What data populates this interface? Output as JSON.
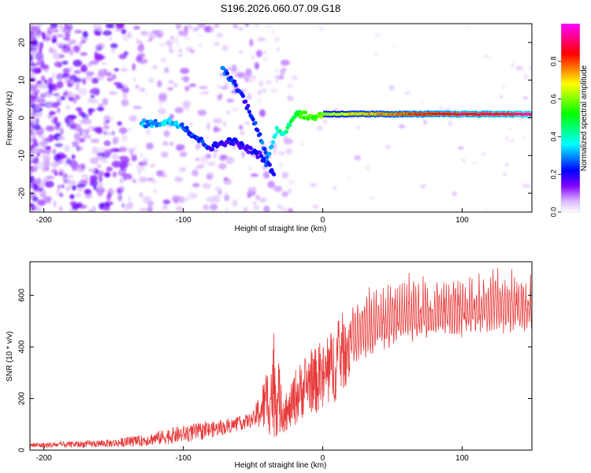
{
  "title": "S196.2026.060.07.09.G18",
  "chart_data": [
    {
      "type": "heatmap",
      "title": "S196.2026.060.07.09.G18",
      "xlabel": "Height of straight line (km)",
      "ylabel": "Frequency (Hz)",
      "xlim": [
        -210,
        150
      ],
      "ylim": [
        -25,
        25
      ],
      "xticks": [
        -200,
        -100,
        0,
        100
      ],
      "yticks": [
        -20,
        -10,
        0,
        10,
        20
      ],
      "colorbar": {
        "label": "Normalized spectral amplitude",
        "ticks": [
          0.0,
          0.2,
          0.4,
          0.6,
          0.8
        ],
        "range": [
          0,
          1
        ],
        "colors": [
          "#ffffff",
          "#8000ff",
          "#0000ff",
          "#00ffff",
          "#00ff00",
          "#ffff00",
          "#ff0000",
          "#ff00ff"
        ]
      },
      "ridge": {
        "description": "bright ridge of spectral energy",
        "points": [
          {
            "x": -130,
            "y": -1.5,
            "a": 0.3
          },
          {
            "x": -120,
            "y": -1.5,
            "a": 0.3
          },
          {
            "x": -110,
            "y": -1,
            "a": 0.35
          },
          {
            "x": -100,
            "y": -2,
            "a": 0.3
          },
          {
            "x": -95,
            "y": -4,
            "a": 0.25
          },
          {
            "x": -88,
            "y": -6,
            "a": 0.25
          },
          {
            "x": -80,
            "y": -8,
            "a": 0.2
          },
          {
            "x": -75,
            "y": -7,
            "a": 0.2
          },
          {
            "x": -65,
            "y": -6,
            "a": 0.2
          },
          {
            "x": -55,
            "y": -8,
            "a": 0.2
          },
          {
            "x": -45,
            "y": -10,
            "a": 0.2
          },
          {
            "x": -38,
            "y": -13,
            "a": 0.25
          },
          {
            "x": -35,
            "y": -15,
            "a": 0.2
          },
          {
            "x": -72,
            "y": 13,
            "a": 0.25
          },
          {
            "x": -65,
            "y": 10,
            "a": 0.25
          },
          {
            "x": -58,
            "y": 6,
            "a": 0.2
          },
          {
            "x": -50,
            "y": 0,
            "a": 0.25
          },
          {
            "x": -45,
            "y": -5,
            "a": 0.25
          },
          {
            "x": -40,
            "y": -11,
            "a": 0.3
          },
          {
            "x": -33,
            "y": -3,
            "a": 0.4
          },
          {
            "x": -27,
            "y": -4,
            "a": 0.4
          },
          {
            "x": -20,
            "y": 1,
            "a": 0.5
          },
          {
            "x": -15,
            "y": 1,
            "a": 0.55
          },
          {
            "x": -8,
            "y": 0,
            "a": 0.55
          },
          {
            "x": 0,
            "y": 1,
            "a": 0.6
          },
          {
            "x": 10,
            "y": 1,
            "a": 0.65
          },
          {
            "x": 20,
            "y": 1,
            "a": 0.7
          },
          {
            "x": 40,
            "y": 1,
            "a": 0.75
          },
          {
            "x": 60,
            "y": 1,
            "a": 0.8
          },
          {
            "x": 80,
            "y": 1,
            "a": 0.85
          },
          {
            "x": 100,
            "y": 1,
            "a": 0.9
          },
          {
            "x": 120,
            "y": 1,
            "a": 0.9
          },
          {
            "x": 150,
            "y": 1,
            "a": 0.95
          }
        ]
      }
    },
    {
      "type": "line",
      "xlabel": "Height of straight line (km)",
      "ylabel": "SNR (10 * v/v)",
      "xlim": [
        -210,
        150
      ],
      "ylim": [
        0,
        730
      ],
      "xticks": [
        -200,
        -100,
        0,
        100
      ],
      "yticks": [
        0,
        200,
        400,
        600
      ],
      "series": [
        {
          "name": "SNR",
          "color": "#e83a3a",
          "envelope": {
            "x": [
              -210,
              -180,
              -150,
              -130,
              -110,
              -90,
              -70,
              -50,
              -40,
              -35,
              -30,
              -25,
              -20,
              -10,
              0,
              10,
              20,
              40,
              60,
              80,
              100,
              120,
              150
            ],
            "mean": [
              15,
              18,
              22,
              30,
              45,
              60,
              80,
              110,
              150,
              180,
              140,
              120,
              170,
              230,
              230,
              300,
              380,
              440,
              480,
              500,
              510,
              520,
              530
            ],
            "peak": [
              30,
              35,
              45,
              60,
              90,
              110,
              120,
              150,
              330,
              460,
              300,
              210,
              330,
              400,
              430,
              520,
              600,
              640,
              680,
              690,
              700,
              700,
              720
            ]
          }
        }
      ]
    }
  ]
}
